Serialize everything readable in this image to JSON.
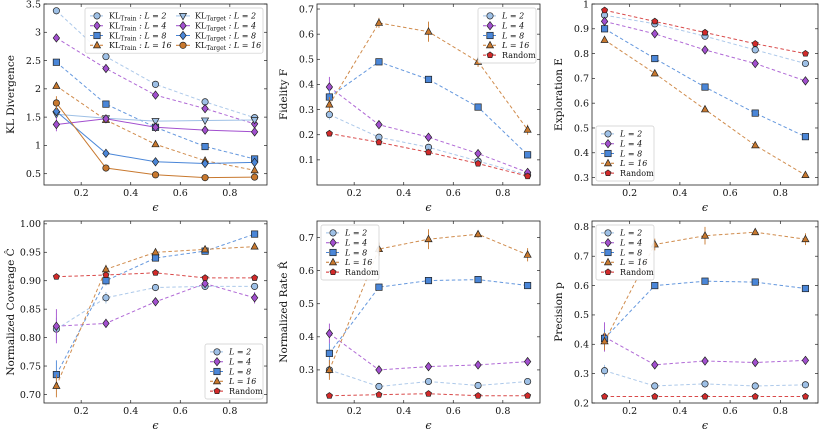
{
  "colors": {
    "L2": "#9ec0e6",
    "L4": "#a24fcf",
    "L8": "#4a86d8",
    "L16": "#c8782e",
    "random": "#d22a2a"
  },
  "chart_data": [
    {
      "type": "line",
      "ylabel": "KL Divergence",
      "xlabel": "ϵ",
      "xlim": [
        0.05,
        0.95
      ],
      "ylim": [
        0.3,
        3.5
      ],
      "xticks": [
        0.2,
        0.4,
        0.6,
        0.8
      ],
      "yticks": [
        0.5,
        1.0,
        1.5,
        2.0,
        2.5,
        3.0,
        3.5
      ],
      "xtick_labels": [
        "0.2",
        "0.4",
        "0.6",
        "0.8"
      ],
      "ytick_labels": [
        "0.5",
        "1",
        "1.5",
        "2",
        "2.5",
        "3",
        "3.5"
      ],
      "legend_position": "top-right",
      "legend_columns": 2,
      "x": [
        0.1,
        0.3,
        0.5,
        0.7,
        0.9
      ],
      "series": [
        {
          "name": "KLTrain : L = 2",
          "name_display": "KL_Train : L = 2",
          "values": [
            3.38,
            2.57,
            2.08,
            1.77,
            1.49
          ],
          "color_key": "L2",
          "marker": "circle",
          "dash": true,
          "errors": [
            0.05,
            0.04,
            0.04,
            0.04,
            0.05
          ]
        },
        {
          "name": "KLTrain : L = 4",
          "name_display": "KL_Train : L = 4",
          "values": [
            2.9,
            2.36,
            1.89,
            1.65,
            1.38
          ],
          "color_key": "L4",
          "marker": "diamond",
          "dash": true,
          "errors": [
            0.05,
            0.04,
            0.04,
            0.04,
            0.05
          ]
        },
        {
          "name": "KLTrain : L = 8",
          "name_display": "KL_Train : L = 8",
          "values": [
            2.47,
            1.73,
            1.32,
            0.98,
            0.76
          ],
          "color_key": "L8",
          "marker": "square",
          "dash": true,
          "errors": [
            0.04,
            0.04,
            0.03,
            0.03,
            0.03
          ]
        },
        {
          "name": "KLTrain : L = 16",
          "name_display": "KL_Train : L = 16",
          "values": [
            2.05,
            1.45,
            1.02,
            0.73,
            0.56
          ],
          "color_key": "L16",
          "marker": "triangle",
          "dash": true,
          "errors": [
            0.04,
            0.03,
            0.03,
            0.03,
            0.03
          ]
        },
        {
          "name": "KLTarget : L = 2",
          "name_display": "KL_Target : L = 2",
          "values": [
            1.55,
            1.48,
            1.43,
            1.44,
            1.45
          ],
          "color_key": "L2",
          "marker": "tri-down",
          "dash": false,
          "errors": [
            0.05,
            0.04,
            0.04,
            0.04,
            0.04
          ]
        },
        {
          "name": "KLTarget : L = 4",
          "name_display": "KL_Target : L = 4",
          "values": [
            1.37,
            1.47,
            1.32,
            1.27,
            1.24
          ],
          "color_key": "L4",
          "marker": "diamond",
          "dash": false,
          "errors": [
            0.12,
            0.05,
            0.04,
            0.04,
            0.04
          ]
        },
        {
          "name": "KLTarget : L = 8",
          "name_display": "KL_Target : L = 8",
          "values": [
            1.6,
            0.86,
            0.71,
            0.68,
            0.7
          ],
          "color_key": "L8",
          "marker": "diamond",
          "dash": false,
          "errors": [
            0.1,
            0.03,
            0.02,
            0.02,
            0.02
          ]
        },
        {
          "name": "KLTarget : L = 16",
          "name_display": "KL_Target : L = 16",
          "values": [
            1.75,
            0.6,
            0.48,
            0.43,
            0.44
          ],
          "color_key": "L16",
          "marker": "circle",
          "dash": false,
          "errors": [
            0.12,
            0.02,
            0.02,
            0.02,
            0.02
          ]
        }
      ]
    },
    {
      "type": "line",
      "ylabel": "Fidelity F",
      "xlabel": "ϵ",
      "xlim": [
        0.05,
        0.95
      ],
      "ylim": [
        0.0,
        0.72
      ],
      "xticks": [
        0.2,
        0.4,
        0.6,
        0.8
      ],
      "yticks": [
        0.1,
        0.2,
        0.3,
        0.4,
        0.5,
        0.6,
        0.7
      ],
      "xtick_labels": [
        "0.2",
        "0.4",
        "0.6",
        "0.8"
      ],
      "ytick_labels": [
        "0.1",
        "0.2",
        "0.3",
        "0.4",
        "0.5",
        "0.6",
        "0.7"
      ],
      "legend_position": "top-right",
      "legend_columns": 1,
      "x": [
        0.1,
        0.3,
        0.5,
        0.7,
        0.9
      ],
      "series": [
        {
          "name": "L = 2",
          "values": [
            0.28,
            0.19,
            0.15,
            0.095,
            0.04
          ],
          "color_key": "L2",
          "marker": "circle",
          "dash": true,
          "errors": [
            0.02,
            0.01,
            0.01,
            0.01,
            0.01
          ]
        },
        {
          "name": "L = 4",
          "values": [
            0.39,
            0.24,
            0.19,
            0.125,
            0.05
          ],
          "color_key": "L4",
          "marker": "diamond",
          "dash": true,
          "errors": [
            0.04,
            0.01,
            0.01,
            0.01,
            0.01
          ]
        },
        {
          "name": "L = 8",
          "values": [
            0.35,
            0.49,
            0.42,
            0.31,
            0.12
          ],
          "color_key": "L8",
          "marker": "square",
          "dash": true,
          "errors": [
            0.03,
            0.01,
            0.01,
            0.01,
            0.01
          ]
        },
        {
          "name": "L = 16",
          "values": [
            0.32,
            0.645,
            0.61,
            0.49,
            0.22
          ],
          "color_key": "L16",
          "marker": "triangle",
          "dash": true,
          "errors": [
            0.03,
            0.02,
            0.04,
            0.02,
            0.02
          ]
        },
        {
          "name": "Random",
          "values": [
            0.205,
            0.17,
            0.13,
            0.085,
            0.035
          ],
          "color_key": "random",
          "marker": "pentagon",
          "dash": true,
          "errors": [
            0.005,
            0.005,
            0.005,
            0.005,
            0.005
          ]
        }
      ]
    },
    {
      "type": "line",
      "ylabel": "Exploration E",
      "xlabel": "ϵ",
      "xlim": [
        0.05,
        0.95
      ],
      "ylim": [
        0.27,
        1.0
      ],
      "xticks": [
        0.2,
        0.4,
        0.6,
        0.8
      ],
      "yticks": [
        0.3,
        0.4,
        0.5,
        0.6,
        0.7,
        0.8,
        0.9,
        1.0
      ],
      "xtick_labels": [
        "0.2",
        "0.4",
        "0.6",
        "0.8"
      ],
      "ytick_labels": [
        "0.3",
        "0.4",
        "0.5",
        "0.6",
        "0.7",
        "0.8",
        "0.9",
        "1"
      ],
      "legend_position": "bottom-left",
      "legend_columns": 1,
      "x": [
        0.1,
        0.3,
        0.5,
        0.7,
        0.9
      ],
      "series": [
        {
          "name": "L = 2",
          "values": [
            0.955,
            0.92,
            0.87,
            0.815,
            0.76
          ],
          "color_key": "L2",
          "marker": "circle",
          "dash": true,
          "errors": [
            0.005,
            0.005,
            0.005,
            0.005,
            0.005
          ]
        },
        {
          "name": "L = 4",
          "values": [
            0.93,
            0.88,
            0.815,
            0.76,
            0.69
          ],
          "color_key": "L4",
          "marker": "diamond",
          "dash": true,
          "errors": [
            0.005,
            0.005,
            0.005,
            0.005,
            0.005
          ]
        },
        {
          "name": "L = 8",
          "values": [
            0.9,
            0.78,
            0.665,
            0.56,
            0.465
          ],
          "color_key": "L8",
          "marker": "square",
          "dash": true,
          "errors": [
            0.005,
            0.005,
            0.005,
            0.005,
            0.005
          ]
        },
        {
          "name": "L = 16",
          "values": [
            0.855,
            0.72,
            0.575,
            0.43,
            0.31
          ],
          "color_key": "L16",
          "marker": "triangle",
          "dash": true,
          "errors": [
            0.005,
            0.005,
            0.005,
            0.005,
            0.005
          ]
        },
        {
          "name": "Random",
          "values": [
            0.975,
            0.93,
            0.885,
            0.84,
            0.8
          ],
          "color_key": "random",
          "marker": "pentagon",
          "dash": true,
          "errors": [
            0.003,
            0.003,
            0.003,
            0.003,
            0.003
          ]
        }
      ]
    },
    {
      "type": "line",
      "ylabel": "Normalized Coverage Ĉ",
      "xlabel": "ϵ",
      "xlim": [
        0.05,
        0.95
      ],
      "ylim": [
        0.685,
        1.005
      ],
      "xticks": [
        0.2,
        0.4,
        0.6,
        0.8
      ],
      "yticks": [
        0.7,
        0.75,
        0.8,
        0.85,
        0.9,
        0.95,
        1.0
      ],
      "xtick_labels": [
        "0.2",
        "0.4",
        "0.6",
        "0.8"
      ],
      "ytick_labels": [
        "0.70",
        "0.75",
        "0.80",
        "0.85",
        "0.90",
        "0.95",
        "1.00"
      ],
      "legend_position": "bottom-right",
      "legend_columns": 1,
      "x": [
        0.1,
        0.3,
        0.5,
        0.7,
        0.9
      ],
      "series": [
        {
          "name": "L = 2",
          "values": [
            0.815,
            0.87,
            0.888,
            0.89,
            0.89
          ],
          "color_key": "L2",
          "marker": "circle",
          "dash": true,
          "errors": [
            0.02,
            0.01,
            0.005,
            0.005,
            0.005
          ]
        },
        {
          "name": "L = 4",
          "values": [
            0.82,
            0.825,
            0.863,
            0.895,
            0.87
          ],
          "color_key": "L4",
          "marker": "diamond",
          "dash": true,
          "errors": [
            0.03,
            0.008,
            0.006,
            0.005,
            0.01
          ]
        },
        {
          "name": "L = 8",
          "values": [
            0.735,
            0.9,
            0.94,
            0.952,
            0.982
          ],
          "color_key": "L8",
          "marker": "square",
          "dash": true,
          "errors": [
            0.025,
            0.008,
            0.005,
            0.004,
            0.003
          ]
        },
        {
          "name": "L = 16",
          "values": [
            0.715,
            0.92,
            0.95,
            0.955,
            0.96
          ],
          "color_key": "L16",
          "marker": "triangle",
          "dash": true,
          "errors": [
            0.02,
            0.008,
            0.005,
            0.004,
            0.005
          ]
        },
        {
          "name": "Random",
          "values": [
            0.907,
            0.91,
            0.914,
            0.905,
            0.905
          ],
          "color_key": "random",
          "marker": "pentagon",
          "dash": true,
          "errors": [
            0.002,
            0.002,
            0.002,
            0.002,
            0.002
          ]
        }
      ]
    },
    {
      "type": "line",
      "ylabel": "Normalized Rate R̂",
      "xlabel": "ϵ",
      "xlim": [
        0.05,
        0.95
      ],
      "ylim": [
        0.2,
        0.75
      ],
      "xticks": [
        0.2,
        0.4,
        0.6,
        0.8
      ],
      "yticks": [
        0.3,
        0.4,
        0.5,
        0.6,
        0.7
      ],
      "xtick_labels": [
        "0.2",
        "0.4",
        "0.6",
        "0.8"
      ],
      "ytick_labels": [
        "0.3",
        "0.4",
        "0.5",
        "0.6",
        "0.7"
      ],
      "legend_position": "top-left",
      "legend_columns": 1,
      "x": [
        0.1,
        0.3,
        0.5,
        0.7,
        0.9
      ],
      "series": [
        {
          "name": "L = 2",
          "values": [
            0.3,
            0.25,
            0.265,
            0.253,
            0.265
          ],
          "color_key": "L2",
          "marker": "circle",
          "dash": true,
          "errors": [
            0.02,
            0.01,
            0.01,
            0.01,
            0.01
          ]
        },
        {
          "name": "L = 4",
          "values": [
            0.41,
            0.3,
            0.31,
            0.315,
            0.325
          ],
          "color_key": "L4",
          "marker": "diamond",
          "dash": true,
          "errors": [
            0.03,
            0.01,
            0.01,
            0.01,
            0.01
          ]
        },
        {
          "name": "L = 8",
          "values": [
            0.35,
            0.55,
            0.57,
            0.573,
            0.555
          ],
          "color_key": "L8",
          "marker": "square",
          "dash": true,
          "errors": [
            0.03,
            0.01,
            0.01,
            0.01,
            0.01
          ]
        },
        {
          "name": "L = 16",
          "values": [
            0.3,
            0.665,
            0.695,
            0.71,
            0.648
          ],
          "color_key": "L16",
          "marker": "triangle",
          "dash": true,
          "errors": [
            0.03,
            0.02,
            0.03,
            0.01,
            0.02
          ]
        },
        {
          "name": "Random",
          "values": [
            0.222,
            0.225,
            0.228,
            0.222,
            0.222
          ],
          "color_key": "random",
          "marker": "pentagon",
          "dash": true,
          "errors": [
            0.003,
            0.003,
            0.003,
            0.003,
            0.003
          ]
        }
      ]
    },
    {
      "type": "line",
      "ylabel": "Precision p",
      "xlabel": "ϵ",
      "xlim": [
        0.05,
        0.95
      ],
      "ylim": [
        0.2,
        0.82
      ],
      "xticks": [
        0.2,
        0.4,
        0.6,
        0.8
      ],
      "yticks": [
        0.2,
        0.3,
        0.4,
        0.5,
        0.6,
        0.7,
        0.8
      ],
      "xtick_labels": [
        "0.2",
        "0.4",
        "0.6",
        "0.8"
      ],
      "ytick_labels": [
        "0.2",
        "0.3",
        "0.4",
        "0.5",
        "0.6",
        "0.7",
        "0.8"
      ],
      "legend_position": "top-left",
      "legend_columns": 1,
      "x": [
        0.1,
        0.3,
        0.5,
        0.7,
        0.9
      ],
      "series": [
        {
          "name": "L = 2",
          "values": [
            0.31,
            0.258,
            0.265,
            0.258,
            0.262
          ],
          "color_key": "L2",
          "marker": "circle",
          "dash": true,
          "errors": [
            0.02,
            0.01,
            0.01,
            0.01,
            0.01
          ]
        },
        {
          "name": "L = 4",
          "values": [
            0.425,
            0.33,
            0.343,
            0.338,
            0.345
          ],
          "color_key": "L4",
          "marker": "diamond",
          "dash": true,
          "errors": [
            0.05,
            0.01,
            0.01,
            0.01,
            0.01
          ]
        },
        {
          "name": "L = 8",
          "values": [
            0.42,
            0.6,
            0.615,
            0.612,
            0.59
          ],
          "color_key": "L8",
          "marker": "square",
          "dash": true,
          "errors": [
            0.03,
            0.01,
            0.01,
            0.01,
            0.01
          ]
        },
        {
          "name": "L = 16",
          "values": [
            0.41,
            0.74,
            0.77,
            0.782,
            0.758
          ],
          "color_key": "L16",
          "marker": "triangle",
          "dash": true,
          "errors": [
            0.03,
            0.02,
            0.03,
            0.01,
            0.02
          ]
        },
        {
          "name": "Random",
          "values": [
            0.222,
            0.222,
            0.222,
            0.222,
            0.222
          ],
          "color_key": "random",
          "marker": "pentagon",
          "dash": true,
          "errors": [
            0.003,
            0.003,
            0.003,
            0.003,
            0.003
          ]
        }
      ]
    }
  ]
}
